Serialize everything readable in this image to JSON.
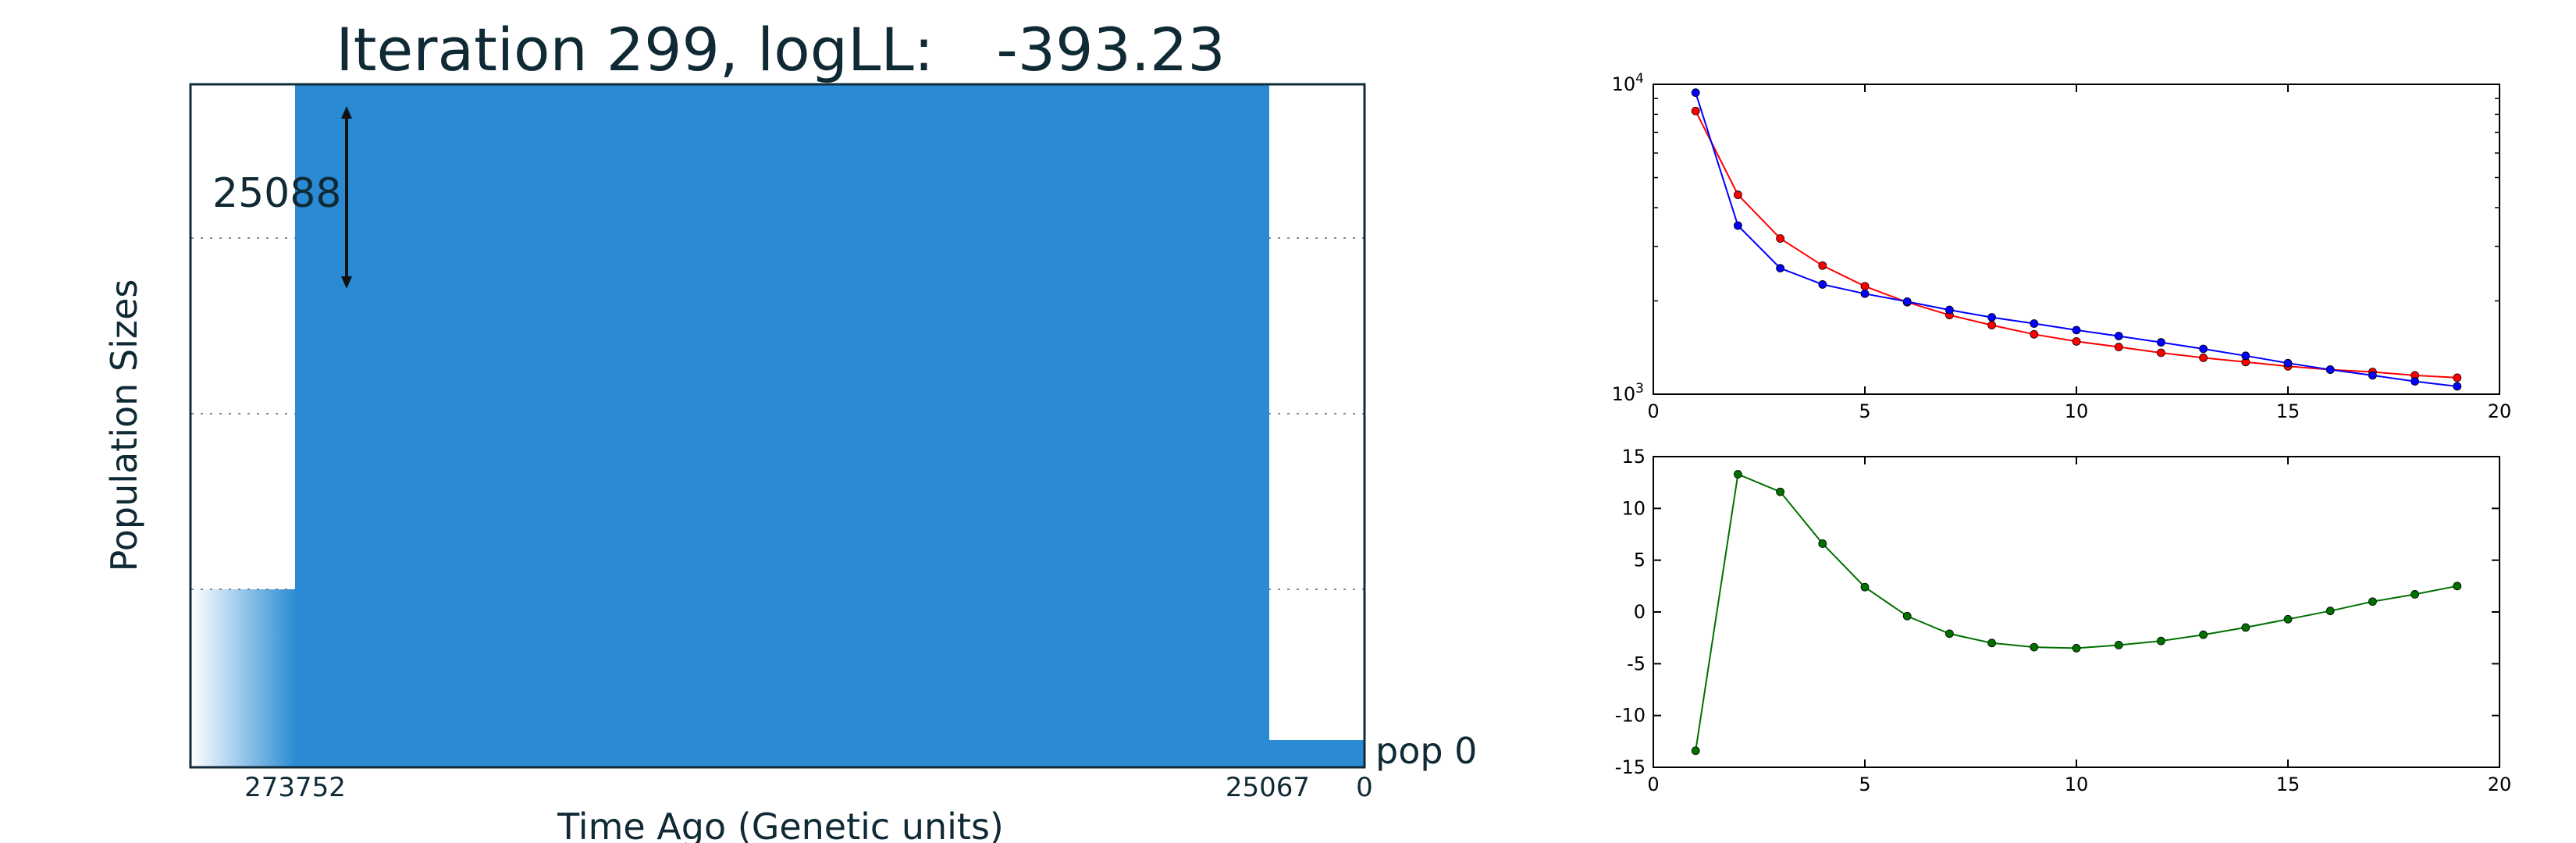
{
  "demography": {
    "title_prefix": "Iteration 299, logLL:",
    "title_value": "-393.23",
    "ylabel": "Population Sizes",
    "xlabel": "Time Ago (Genetic units)",
    "population_label": "pop 0",
    "size_annotation": "25088",
    "time_ticks": [
      "273752",
      "25067",
      "0"
    ],
    "colors": {
      "fill": "#2a8bd4",
      "frame": "#0f2c3a",
      "text": "#102a35"
    }
  },
  "chart_data": [
    {
      "type": "line",
      "scale": "log",
      "x": [
        1,
        2,
        3,
        4,
        5,
        6,
        7,
        8,
        9,
        10,
        11,
        12,
        13,
        14,
        15,
        16,
        17,
        18,
        19
      ],
      "xlim": [
        0,
        20
      ],
      "ylim": [
        1000,
        10000
      ],
      "xticks": [
        "0",
        "5",
        "10",
        "15",
        "20"
      ],
      "yticks": [
        {
          "base": "10",
          "exp": "3",
          "value": 1000
        },
        {
          "base": "10",
          "exp": "4",
          "value": 10000
        }
      ],
      "series": [
        {
          "color": "#ff0000",
          "values": [
            8200,
            4400,
            3180,
            2600,
            2230,
            1980,
            1800,
            1670,
            1560,
            1480,
            1420,
            1360,
            1310,
            1270,
            1230,
            1200,
            1180,
            1150,
            1130
          ]
        },
        {
          "color": "#0000ff",
          "values": [
            9400,
            3500,
            2550,
            2260,
            2110,
            1990,
            1870,
            1770,
            1690,
            1610,
            1540,
            1470,
            1400,
            1330,
            1260,
            1200,
            1150,
            1100,
            1060
          ]
        }
      ]
    },
    {
      "type": "line",
      "x": [
        1,
        2,
        3,
        4,
        5,
        6,
        7,
        8,
        9,
        10,
        11,
        12,
        13,
        14,
        15,
        16,
        17,
        18,
        19
      ],
      "xlim": [
        0,
        20
      ],
      "ylim": [
        -15,
        15
      ],
      "xticks": [
        "0",
        "5",
        "10",
        "15",
        "20"
      ],
      "yticks": [
        "15",
        "10",
        "5",
        "0",
        "-5",
        "-10",
        "-15"
      ],
      "series": [
        {
          "color": "#007000",
          "values": [
            -13.4,
            13.3,
            11.6,
            6.6,
            2.4,
            -0.4,
            -2.1,
            -3.0,
            -3.4,
            -3.5,
            -3.2,
            -2.8,
            -2.2,
            -1.5,
            -0.7,
            0.1,
            1.0,
            1.7,
            2.5
          ]
        }
      ]
    }
  ]
}
